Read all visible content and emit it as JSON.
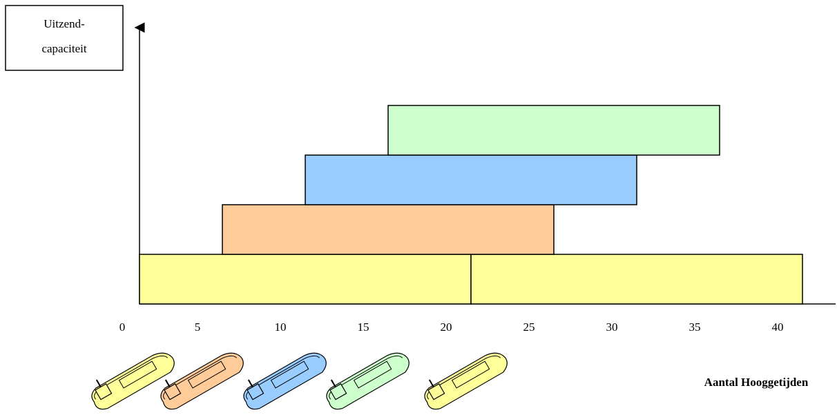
{
  "chart_data": {
    "type": "range-bar",
    "y_label_lines": [
      "Uitzend-",
      "capaciteit"
    ],
    "x_label": "Aantal Hooggetijden",
    "xlim": [
      0,
      43.5
    ],
    "xticks": [
      0,
      5,
      10,
      15,
      20,
      25,
      30,
      35,
      40
    ],
    "series": [
      {
        "color": "#ffff99",
        "ranges": [
          [
            1.5,
            21.5
          ],
          [
            21.5,
            41.5
          ]
        ]
      },
      {
        "color": "#ffcc99",
        "ranges": [
          [
            6.5,
            26.5
          ]
        ]
      },
      {
        "color": "#99ccff",
        "ranges": [
          [
            11.5,
            31.5
          ]
        ]
      },
      {
        "color": "#ccffcc",
        "ranges": [
          [
            16.5,
            36.5
          ]
        ]
      }
    ],
    "ship_colors": [
      "#ffff99",
      "#ffcc99",
      "#99ccff",
      "#ccffcc",
      "#ffff99"
    ]
  }
}
